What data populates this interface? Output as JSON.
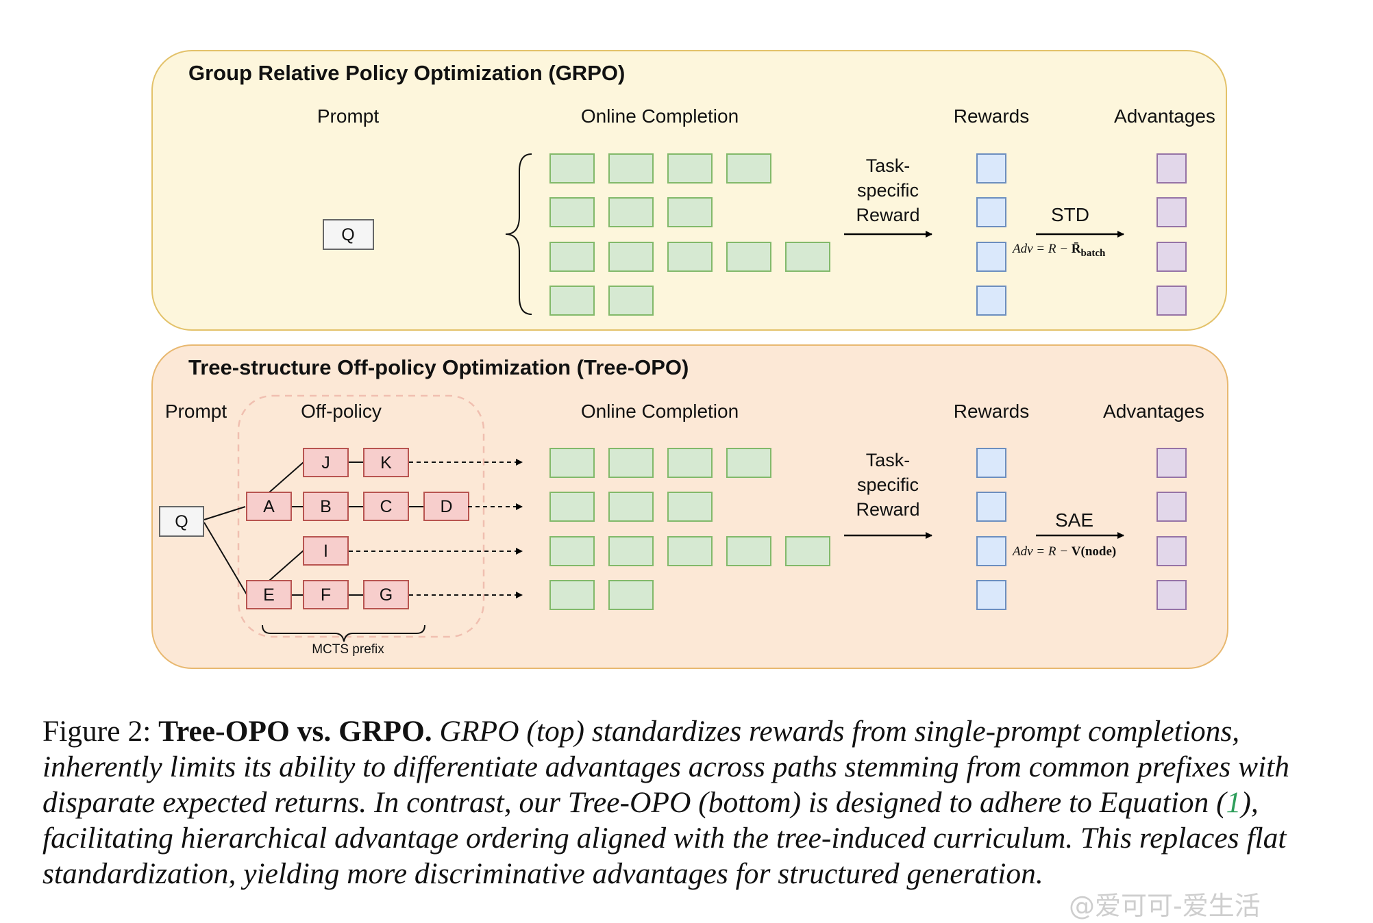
{
  "grpo": {
    "title": "Group Relative Policy Optimization (GRPO)",
    "col_prompt": "Prompt",
    "col_online": "Online Completion",
    "col_rewards": "Rewards",
    "col_advantages": "Advantages",
    "query": "Q",
    "reward_label": [
      "Task-",
      "specific",
      "Reward"
    ],
    "norm_label": "STD",
    "adv_formula": {
      "lhs": "Adv = R − ",
      "term": "R̄",
      "sub": "batch"
    },
    "completion_rows": [
      4,
      3,
      5,
      2
    ]
  },
  "treeopo": {
    "title": "Tree-structure Off-policy Optimization (Tree-OPO)",
    "col_prompt": "Prompt",
    "col_offpolicy": "Off-policy",
    "col_online": "Online Completion",
    "col_rewards": "Rewards",
    "col_advantages": "Advantages",
    "query": "Q",
    "nodes": [
      "J",
      "K",
      "A",
      "B",
      "C",
      "D",
      "I",
      "E",
      "F",
      "G"
    ],
    "prefix_label": "MCTS prefix",
    "reward_label": [
      "Task-",
      "specific",
      "Reward"
    ],
    "norm_label": "SAE",
    "adv_formula": {
      "lhs": "Adv = R − ",
      "term": "V(node)"
    },
    "completion_rows": [
      4,
      3,
      5,
      2
    ]
  },
  "caption": {
    "prefix": "Figure 2: ",
    "title": "Tree-OPO vs. GRPO.",
    "body_1": " GRPO (top) standardizes rewards from single-prompt completions, inherently limits its ability to differentiate advantages across paths stemming from common prefixes with disparate expected returns. In contrast, our Tree-OPO (bottom) is designed to adhere to Equation (",
    "eq_ref": "1",
    "body_2": "), facilitating hierarchical advantage ordering aligned with the tree-induced curriculum. This replaces flat standardization, yielding more discriminative advantages for structured generation."
  },
  "watermark": "@爱可可-爱生活",
  "colors": {
    "panel_top_fill": "#fdf6dc",
    "panel_top_stroke": "#e3c26a",
    "panel_bottom_fill": "#fce8d6",
    "panel_bottom_stroke": "#e8b870",
    "completion_fill": "#d6e9d2",
    "completion_stroke": "#82b96a",
    "reward_fill": "#dae8fb",
    "reward_stroke": "#6c8ebf",
    "advantage_fill": "#e2d7ea",
    "advantage_stroke": "#9673a6",
    "node_fill": "#f7cecc",
    "node_stroke": "#b85450",
    "query_fill": "#f5f5f5",
    "query_stroke": "#666666",
    "eq_ref": "#2e9e5b"
  }
}
